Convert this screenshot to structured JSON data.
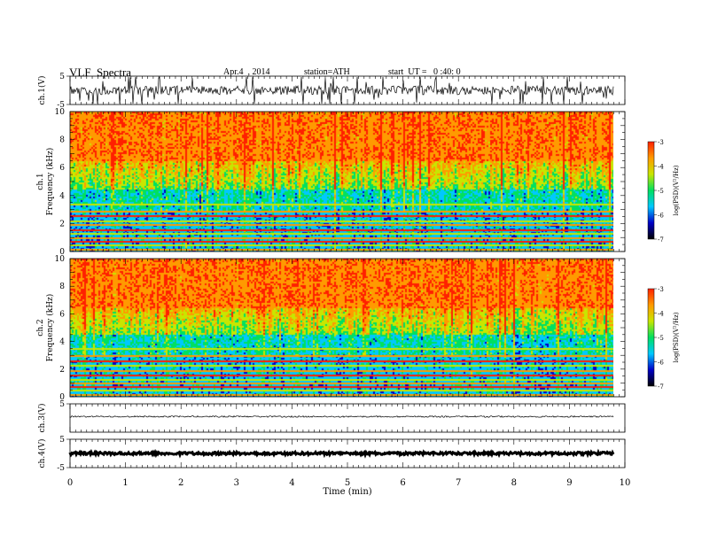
{
  "header": {
    "title": "VLF  Spectra",
    "date": "Apr.4  , 2014",
    "station": "station=ATH",
    "start": "start  UT =   0 :40: 0"
  },
  "chart_data": [
    {
      "type": "line",
      "id": "ch1",
      "ylabel": "ch.1(V)",
      "ylim": [
        -5,
        5
      ],
      "yticks": [
        "5",
        "-5"
      ],
      "xlim": [
        0,
        10
      ],
      "xmax_data": 9.8,
      "baseline": 0,
      "color": "#000000",
      "description_level": "dense noisy trace with frequent spikes"
    },
    {
      "type": "heatmap",
      "id": "ch1-spectrogram",
      "ylabel": "ch.1\nFrequency  (kHz)",
      "ylabel_lines": [
        "ch.1",
        "Frequency  (kHz)"
      ],
      "ylim": [
        0,
        10
      ],
      "yticks": [
        "0",
        "2",
        "4",
        "6",
        "8",
        "10"
      ],
      "xlim": [
        0,
        10
      ],
      "xmax_data": 9.8,
      "colorbar": {
        "label": "log(PSD)(V²/Hz)",
        "ticks": [
          "-3",
          "-4",
          "-5",
          "-6",
          "-7"
        ],
        "range": [
          -7,
          -3
        ],
        "colors": [
          "#000000",
          "#0000c8",
          "#00c8ff",
          "#00e060",
          "#c8e600",
          "#ff9a00",
          "#ff2000",
          "#ffffff"
        ]
      },
      "bands_khz": [
        0.2,
        0.5,
        0.75,
        1.0,
        1.3,
        1.6,
        1.95,
        2.2,
        2.6,
        2.9,
        3.4
      ]
    },
    {
      "type": "heatmap",
      "id": "ch2-spectrogram",
      "ylabel": "ch.2\nFrequency  (kHz)",
      "ylabel_lines": [
        "ch.2",
        "Frequency  (kHz)"
      ],
      "ylim": [
        0,
        10
      ],
      "yticks": [
        "0",
        "2",
        "4",
        "6",
        "8",
        "10"
      ],
      "xlim": [
        0,
        10
      ],
      "xmax_data": 9.8,
      "colorbar": {
        "label": "log(PSD)(V²/Hz)",
        "ticks": [
          "-3",
          "-4",
          "-5",
          "-6",
          "-7"
        ],
        "range": [
          -7,
          -3
        ],
        "colors": [
          "#000000",
          "#0000c8",
          "#00c8ff",
          "#00e060",
          "#c8e600",
          "#ff9a00",
          "#ff2000",
          "#ffffff"
        ]
      },
      "bands_khz": [
        0.2,
        0.5,
        0.75,
        1.0,
        1.3,
        1.6,
        1.95,
        2.3,
        2.6,
        3.0,
        3.5
      ]
    },
    {
      "type": "line",
      "id": "ch3",
      "ylabel": "ch.3(V)",
      "ylim": [
        -5,
        5
      ],
      "yticks": [
        "5"
      ],
      "xlim": [
        0,
        10
      ],
      "xmax_data": 9.8,
      "baseline": 0.5,
      "color": "#000000"
    },
    {
      "type": "line",
      "id": "ch4",
      "ylabel": "ch.4(V)",
      "ylim": [
        -5,
        5
      ],
      "yticks": [
        "5",
        "-5"
      ],
      "xlim": [
        0,
        10
      ],
      "xmax_data": 9.8,
      "baseline": 0,
      "color": "#000000"
    }
  ],
  "xaxis": {
    "label": "Time  (min)",
    "ticks": [
      "0",
      "1",
      "2",
      "3",
      "4",
      "5",
      "6",
      "7",
      "8",
      "9",
      "10"
    ],
    "range": [
      0,
      10
    ]
  }
}
